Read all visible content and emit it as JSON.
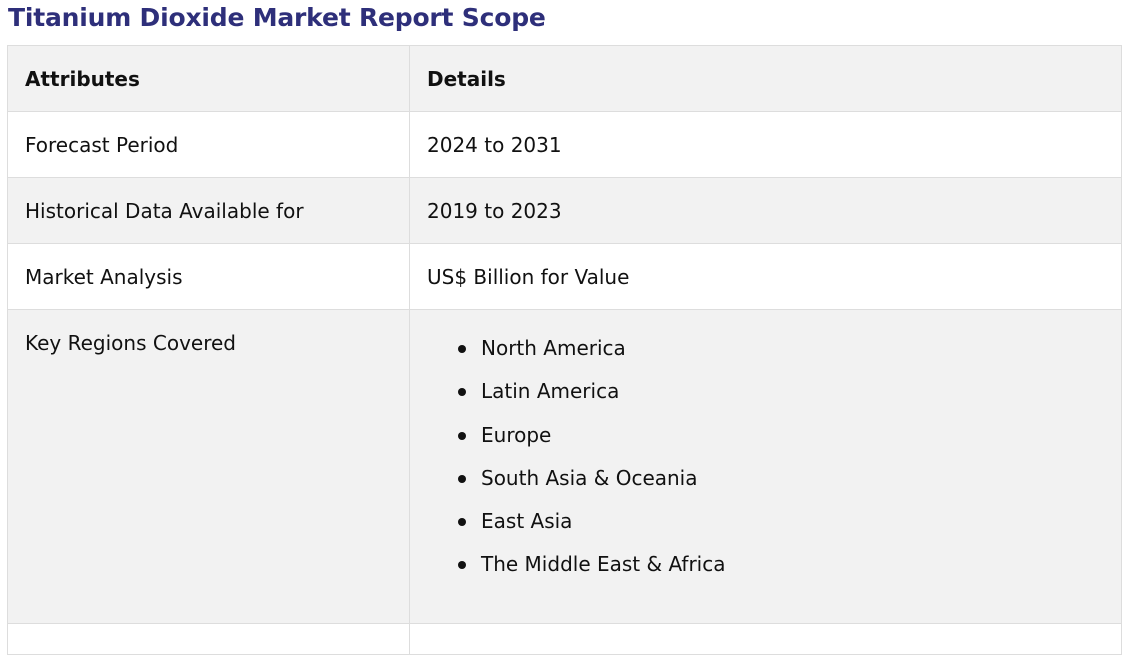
{
  "page": {
    "title": "Titanium Dioxide Market Report Scope"
  },
  "table": {
    "headers": {
      "attributes": "Attributes",
      "details": "Details"
    },
    "rows": [
      {
        "attribute": "Forecast Period",
        "detail": "2024 to 2031"
      },
      {
        "attribute": "Historical Data Available for",
        "detail": "2019 to 2023"
      },
      {
        "attribute": "Market Analysis",
        "detail": "US$ Billion for Value"
      }
    ],
    "regions": {
      "attribute": "Key Regions Covered",
      "items": [
        "North America",
        "Latin America",
        "Europe",
        "South Asia & Oceania",
        "East Asia",
        "The Middle East & Africa"
      ]
    }
  },
  "colors": {
    "title": "#2e2f7a",
    "shaded_row": "#f2f2f2",
    "border": "#dddddd"
  }
}
